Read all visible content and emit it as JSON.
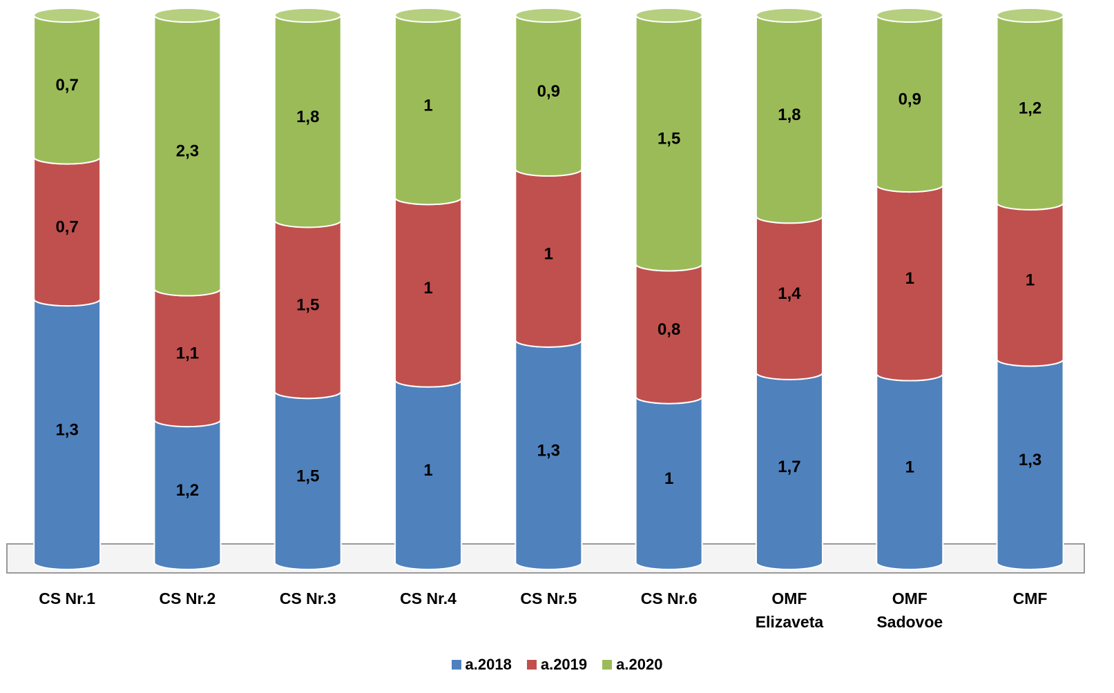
{
  "chart_data": {
    "type": "bar",
    "stacked": "percent",
    "categories": [
      "CS Nr.1",
      "CS Nr.2",
      "CS Nr.3",
      "CS Nr.4",
      "CS Nr.5",
      "CS Nr.6",
      "OMF Elizaveta",
      "OMF Sadovoe",
      "CMF"
    ],
    "series": [
      {
        "name": "a.2018",
        "color": "#4f81bd",
        "values": [
          1.3,
          1.2,
          1.5,
          1,
          1.3,
          1,
          1.7,
          1,
          1.3
        ],
        "value_labels": [
          "1,3",
          "1,2",
          "1,5",
          "1",
          "1,3",
          "1",
          "1,7",
          "1",
          "1,3"
        ]
      },
      {
        "name": "a.2019",
        "color": "#c0504d",
        "values": [
          0.7,
          1.1,
          1.5,
          1,
          1,
          0.8,
          1.4,
          1,
          1
        ],
        "value_labels": [
          "0,7",
          "1,1",
          "1,5",
          "1",
          "1",
          "0,8",
          "1,4",
          "1",
          "1"
        ]
      },
      {
        "name": "a.2020",
        "color": "#9bbb59",
        "values": [
          0.7,
          2.3,
          1.8,
          1,
          0.9,
          1.5,
          1.8,
          0.9,
          1.2
        ],
        "value_labels": [
          "0,7",
          "2,3",
          "1,8",
          "1",
          "0,9",
          "1,5",
          "1,8",
          "0,9",
          "1,2"
        ]
      }
    ],
    "legend": "bottom"
  }
}
